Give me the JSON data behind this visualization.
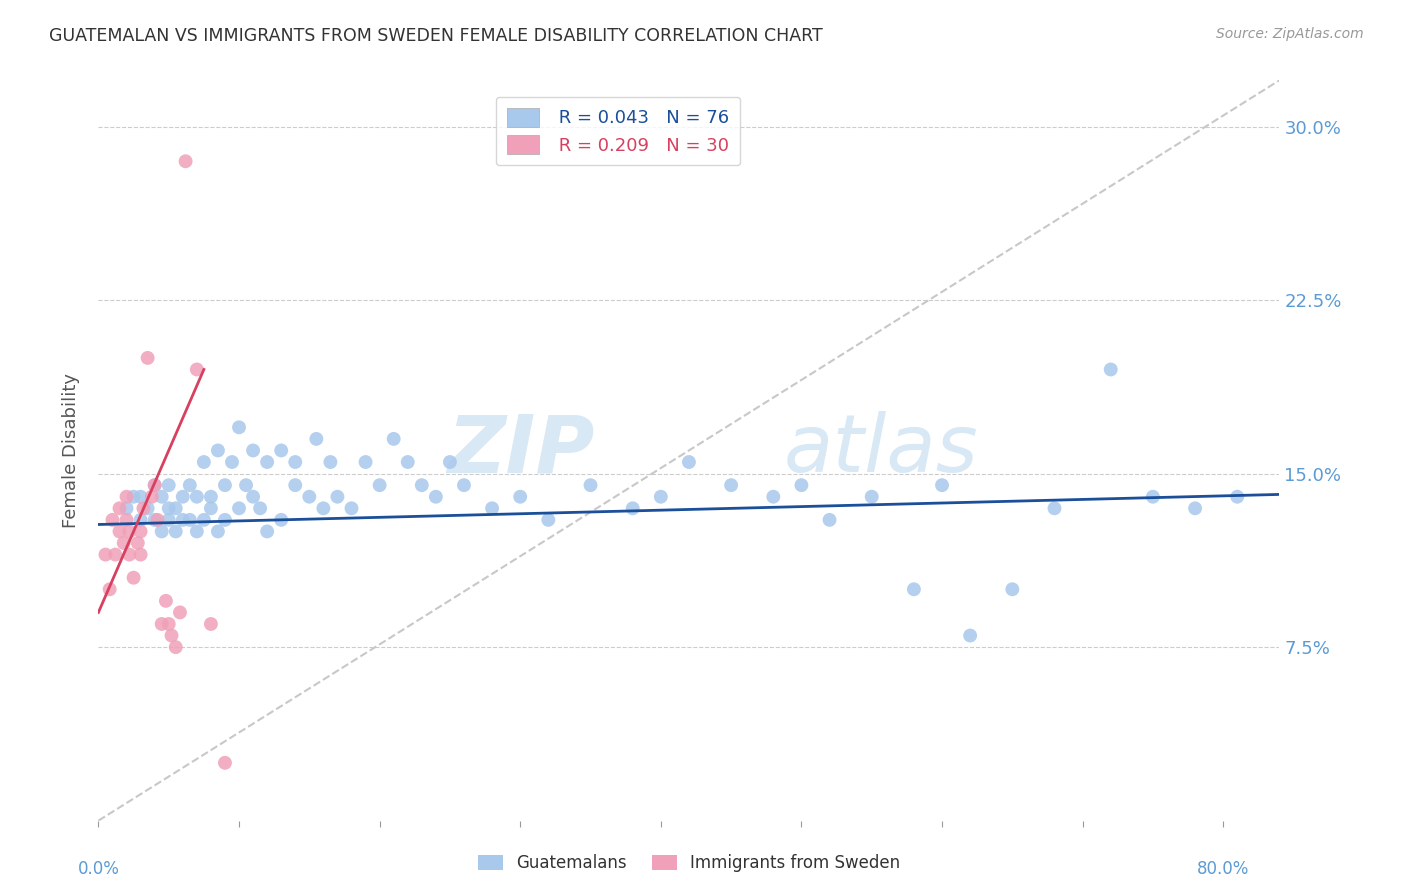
{
  "title": "GUATEMALAN VS IMMIGRANTS FROM SWEDEN FEMALE DISABILITY CORRELATION CHART",
  "source": "Source: ZipAtlas.com",
  "ylabel": "Female Disability",
  "ytick_labels": [
    "30.0%",
    "22.5%",
    "15.0%",
    "7.5%"
  ],
  "ytick_values": [
    0.3,
    0.225,
    0.15,
    0.075
  ],
  "xlim": [
    0.0,
    0.84
  ],
  "ylim": [
    0.0,
    0.32
  ],
  "legend_blue_r": "R = 0.043",
  "legend_blue_n": "N = 76",
  "legend_pink_r": "R = 0.209",
  "legend_pink_n": "N = 30",
  "scatter_blue": {
    "x": [
      0.02,
      0.025,
      0.03,
      0.03,
      0.035,
      0.04,
      0.04,
      0.045,
      0.045,
      0.05,
      0.05,
      0.05,
      0.055,
      0.055,
      0.06,
      0.06,
      0.065,
      0.065,
      0.07,
      0.07,
      0.075,
      0.075,
      0.08,
      0.08,
      0.085,
      0.085,
      0.09,
      0.09,
      0.095,
      0.1,
      0.1,
      0.105,
      0.11,
      0.11,
      0.115,
      0.12,
      0.12,
      0.13,
      0.13,
      0.14,
      0.14,
      0.15,
      0.155,
      0.16,
      0.165,
      0.17,
      0.18,
      0.19,
      0.2,
      0.21,
      0.22,
      0.23,
      0.24,
      0.25,
      0.26,
      0.28,
      0.3,
      0.32,
      0.35,
      0.38,
      0.4,
      0.42,
      0.45,
      0.48,
      0.5,
      0.52,
      0.55,
      0.58,
      0.6,
      0.62,
      0.65,
      0.68,
      0.72,
      0.75,
      0.78,
      0.81
    ],
    "y": [
      0.135,
      0.14,
      0.13,
      0.14,
      0.135,
      0.13,
      0.145,
      0.125,
      0.14,
      0.13,
      0.135,
      0.145,
      0.125,
      0.135,
      0.13,
      0.14,
      0.13,
      0.145,
      0.125,
      0.14,
      0.13,
      0.155,
      0.135,
      0.14,
      0.125,
      0.16,
      0.13,
      0.145,
      0.155,
      0.135,
      0.17,
      0.145,
      0.14,
      0.16,
      0.135,
      0.155,
      0.125,
      0.16,
      0.13,
      0.145,
      0.155,
      0.14,
      0.165,
      0.135,
      0.155,
      0.14,
      0.135,
      0.155,
      0.145,
      0.165,
      0.155,
      0.145,
      0.14,
      0.155,
      0.145,
      0.135,
      0.14,
      0.13,
      0.145,
      0.135,
      0.14,
      0.155,
      0.145,
      0.14,
      0.145,
      0.13,
      0.14,
      0.1,
      0.145,
      0.08,
      0.1,
      0.135,
      0.195,
      0.14,
      0.135,
      0.14
    ]
  },
  "scatter_pink": {
    "x": [
      0.005,
      0.008,
      0.01,
      0.012,
      0.015,
      0.015,
      0.018,
      0.02,
      0.02,
      0.022,
      0.022,
      0.025,
      0.028,
      0.03,
      0.03,
      0.032,
      0.035,
      0.038,
      0.04,
      0.042,
      0.045,
      0.048,
      0.05,
      0.052,
      0.055,
      0.058,
      0.062,
      0.07,
      0.08,
      0.09
    ],
    "y": [
      0.115,
      0.1,
      0.13,
      0.115,
      0.125,
      0.135,
      0.12,
      0.13,
      0.14,
      0.125,
      0.115,
      0.105,
      0.12,
      0.115,
      0.125,
      0.135,
      0.2,
      0.14,
      0.145,
      0.13,
      0.085,
      0.095,
      0.085,
      0.08,
      0.075,
      0.09,
      0.285,
      0.195,
      0.085,
      0.025
    ]
  },
  "blue_line": {
    "x0": 0.0,
    "x1": 0.84,
    "y0": 0.128,
    "y1": 0.141
  },
  "pink_line": {
    "x0": 0.0,
    "x1": 0.075,
    "y0": 0.09,
    "y1": 0.195
  },
  "grey_dashed_line": {
    "x0": 0.0,
    "x1": 0.84,
    "y0": 0.0,
    "y1": 0.32
  },
  "blue_color": "#A8C8EC",
  "pink_color": "#F0A0B8",
  "blue_line_color": "#1B4F9A",
  "pink_line_color": "#D84060",
  "grey_dashed_color": "#C8C8C8",
  "title_color": "#333333",
  "axis_color": "#5B9BD5",
  "watermark_zip": "ZIP",
  "watermark_atlas": "atlas",
  "watermark_color": "#D8E8F5"
}
